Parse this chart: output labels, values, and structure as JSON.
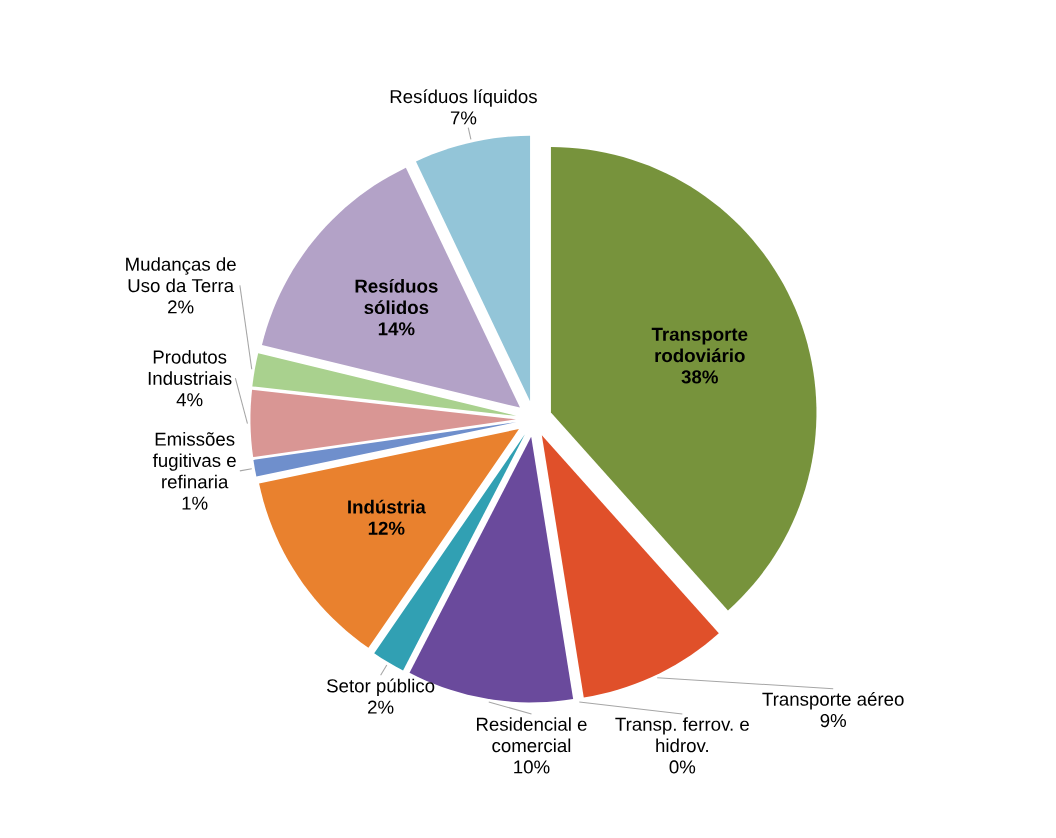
{
  "chart_data": {
    "type": "pie",
    "categories": [
      "Transporte rodoviário",
      "Transporte aéreo",
      "Transp. ferrov. e hidrov.",
      "Residencial e comercial",
      "Setor público",
      "Indústria",
      "Emissões fugitivas e refinaria",
      "Produtos Industriais",
      "Mudanças de Uso da Terra",
      "Resíduos sólidos",
      "Resíduos líquidos"
    ],
    "values": [
      38,
      9,
      0,
      10,
      2,
      12,
      1,
      4,
      2,
      14,
      7
    ],
    "value_labels": [
      "38%",
      "9%",
      "0%",
      "10%",
      "2%",
      "12%",
      "1%",
      "4%",
      "2%",
      "14%",
      "7%"
    ],
    "colors": [
      "#77933c",
      "#e0502a",
      "#9bbb59",
      "#6a4a9c",
      "#31a0b3",
      "#e9812e",
      "#6f8fcc",
      "#d99694",
      "#a9d18e",
      "#b3a2c7",
      "#93c5d8"
    ]
  }
}
